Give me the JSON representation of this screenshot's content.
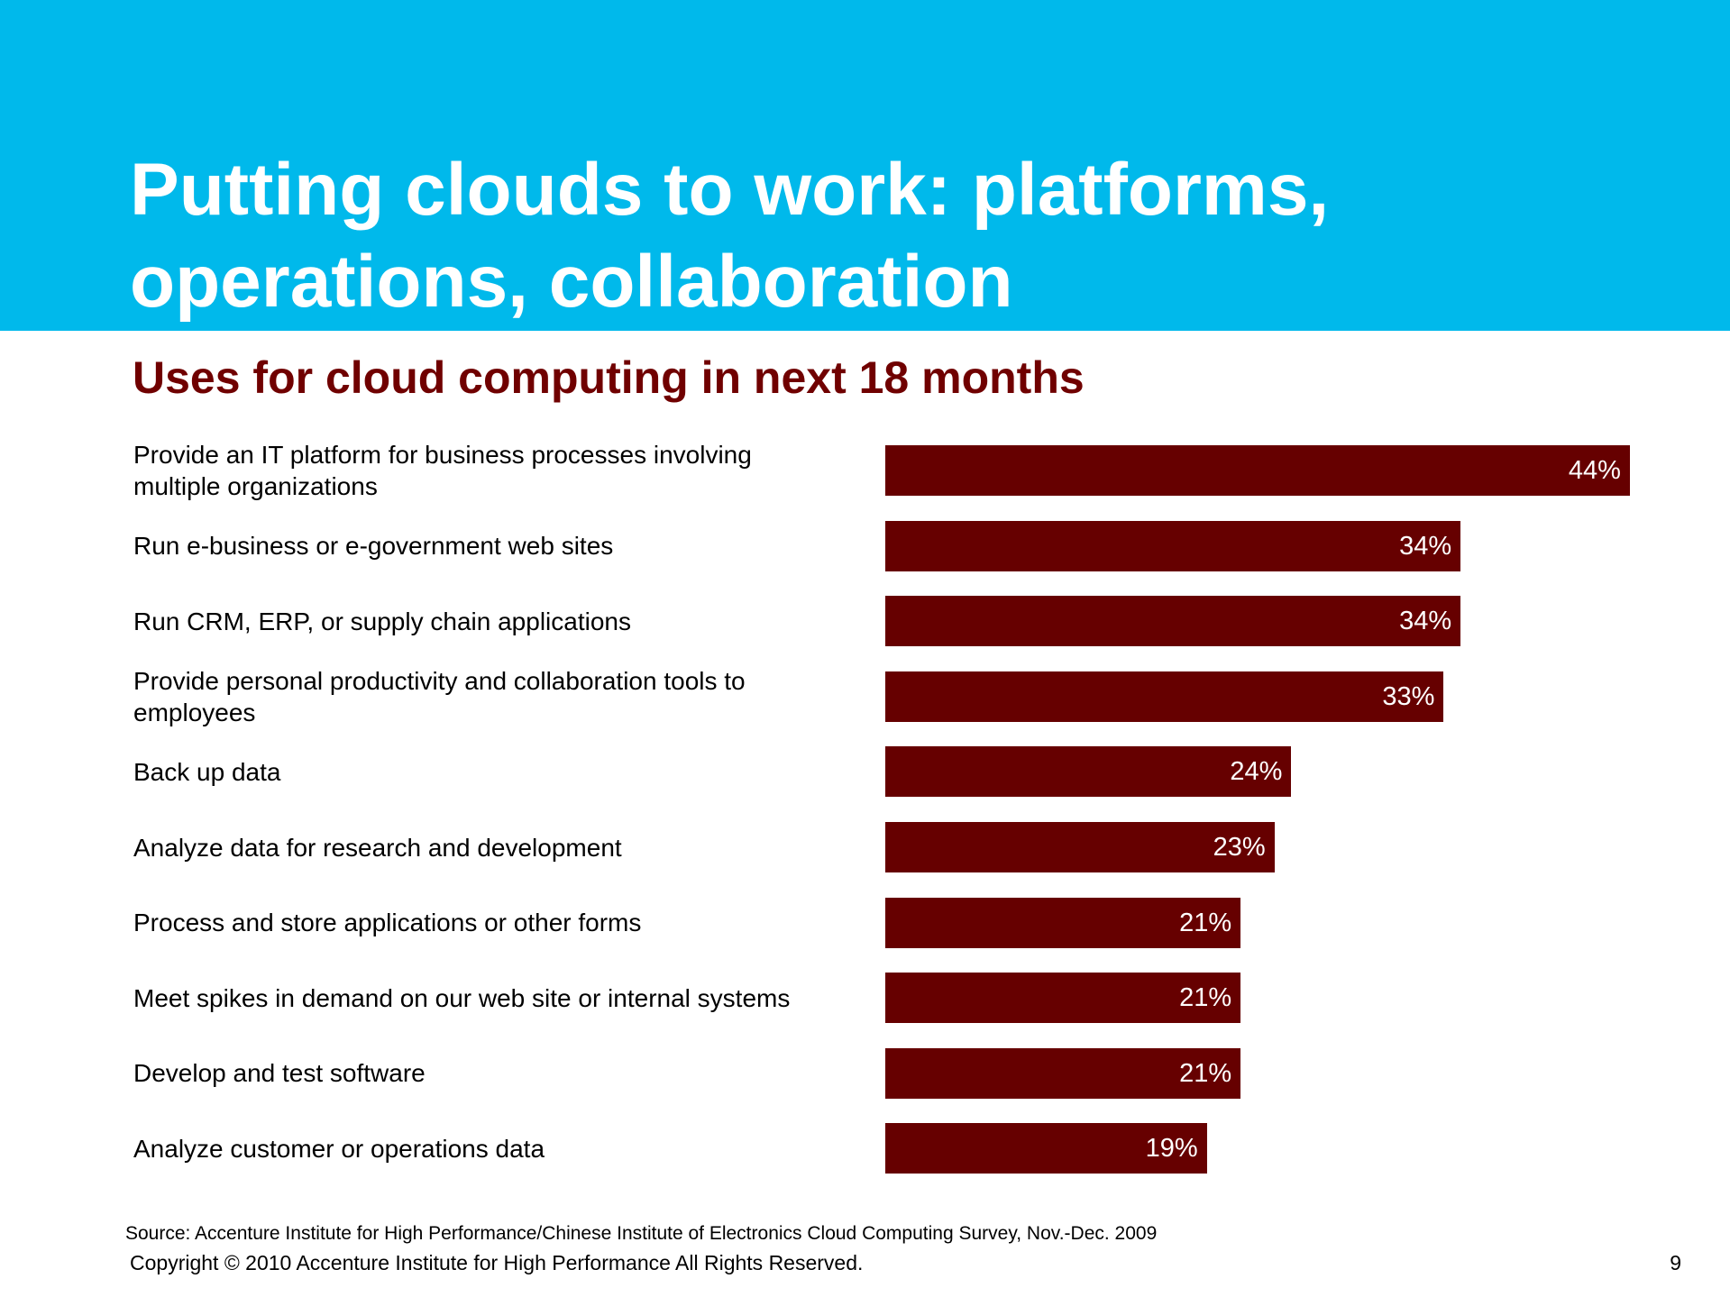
{
  "slide": {
    "title": "Putting clouds to work: platforms, operations, collaboration",
    "source": "Source: Accenture Institute for High Performance/Chinese Institute of Electronics Cloud Computing Survey, Nov.-Dec. 2009",
    "copyright": "Copyright © 2010 Accenture Institute for High Performance All Rights Reserved.",
    "page_number": 9
  },
  "chart_data": {
    "type": "bar",
    "orientation": "horizontal",
    "title": "Uses for cloud computing in next 18 months",
    "categories": [
      "Provide an IT platform for business processes involving multiple organizations",
      "Run e-business or e-government web sites",
      "Run CRM, ERP, or supply chain applications",
      "Provide personal productivity and collaboration tools to employees",
      "Back up data",
      "Analyze data for research and development",
      "Process and store applications or other forms",
      "Meet spikes in demand on our web site or internal systems",
      "Develop and test software",
      "Analyze customer or operations data"
    ],
    "values": [
      44,
      34,
      34,
      33,
      24,
      23,
      21,
      21,
      21,
      19
    ],
    "value_labels": [
      "44%",
      "34%",
      "34%",
      "33%",
      "24%",
      "23%",
      "21%",
      "21%",
      "21%",
      "19%"
    ],
    "color": "#660000"
  }
}
